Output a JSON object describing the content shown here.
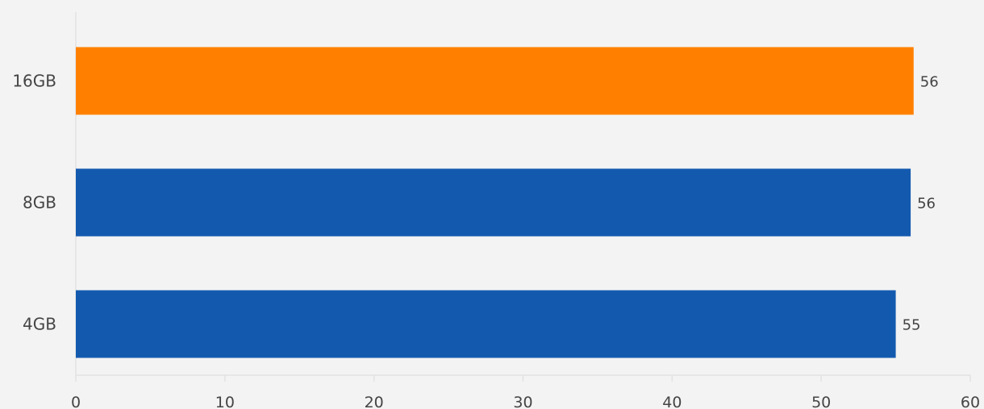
{
  "chart_data": {
    "type": "bar",
    "orientation": "horizontal",
    "categories": [
      "16GB",
      "8GB",
      "4GB"
    ],
    "values": [
      56.2,
      56.0,
      55.0
    ],
    "value_labels": [
      "56",
      "56",
      "55"
    ],
    "xlim": [
      0,
      60
    ],
    "x_ticks": [
      "0",
      "10",
      "20",
      "30",
      "40",
      "50",
      "60"
    ],
    "grid": false,
    "legend": "none",
    "colors": {
      "highlight": "#ff8000",
      "default": "#135aaf",
      "axis": "#e2e2e2",
      "text": "#444444",
      "background": "#f3f3f3"
    },
    "highlight_category": "16GB"
  }
}
